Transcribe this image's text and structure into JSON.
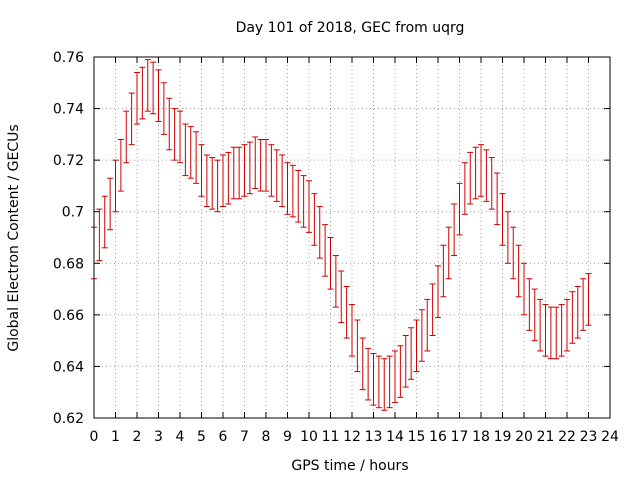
{
  "chart_data": {
    "type": "scatter",
    "title": "Day 101 of 2018, GEC from uqrg",
    "xlabel": "GPS time / hours",
    "ylabel": "Global Electron Content / GECUs",
    "xlim": [
      0,
      24
    ],
    "ylim": [
      0.62,
      0.76
    ],
    "xticks": [
      "0",
      "1",
      "2",
      "3",
      "4",
      "5",
      "6",
      "7",
      "8",
      "9",
      "10",
      "11",
      "12",
      "13",
      "14",
      "15",
      "16",
      "17",
      "18",
      "19",
      "20",
      "21",
      "22",
      "23",
      "24"
    ],
    "yticks": [
      "0.62",
      "0.64",
      "0.66",
      "0.68",
      "0.7",
      "0.72",
      "0.74",
      "0.76"
    ],
    "grid": true,
    "marker": "error bars",
    "error": 0.01,
    "x_step_hours": 0.25,
    "values": [
      0.684,
      0.691,
      0.696,
      0.703,
      0.71,
      0.718,
      0.729,
      0.736,
      0.744,
      0.746,
      0.749,
      0.748,
      0.745,
      0.74,
      0.734,
      0.73,
      0.729,
      0.724,
      0.723,
      0.721,
      0.716,
      0.712,
      0.711,
      0.71,
      0.712,
      0.713,
      0.715,
      0.715,
      0.716,
      0.717,
      0.719,
      0.718,
      0.718,
      0.716,
      0.714,
      0.712,
      0.709,
      0.708,
      0.706,
      0.704,
      0.702,
      0.697,
      0.692,
      0.685,
      0.68,
      0.673,
      0.667,
      0.661,
      0.654,
      0.648,
      0.641,
      0.637,
      0.635,
      0.634,
      0.633,
      0.634,
      0.636,
      0.638,
      0.642,
      0.645,
      0.648,
      0.652,
      0.656,
      0.662,
      0.669,
      0.677,
      0.684,
      0.693,
      0.701,
      0.709,
      0.713,
      0.715,
      0.716,
      0.714,
      0.711,
      0.705,
      0.697,
      0.69,
      0.684,
      0.677,
      0.67,
      0.664,
      0.66,
      0.656,
      0.654,
      0.653,
      0.653,
      0.654,
      0.656,
      0.659,
      0.661,
      0.664,
      0.666
    ],
    "color": "#cc0000"
  }
}
